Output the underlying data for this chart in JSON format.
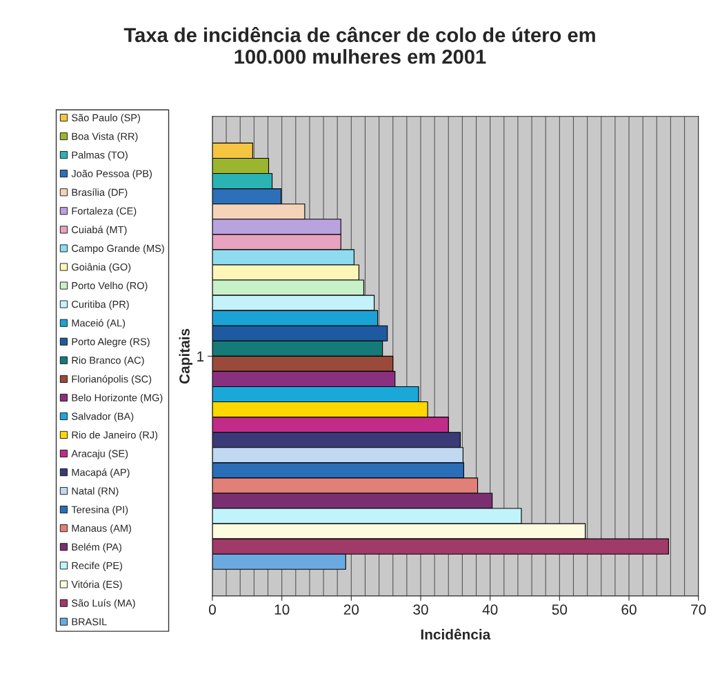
{
  "chart_data": {
    "type": "bar",
    "orientation": "horizontal",
    "title": "Taxa de incidência de câncer de colo de útero em\n100.000 mulheres em 2001",
    "xlabel": "Incidência",
    "ylabel": "Capitais",
    "categories": [
      "1"
    ],
    "xlim": [
      0,
      70
    ],
    "xticks": [
      0,
      10,
      20,
      30,
      40,
      50,
      60,
      70
    ],
    "grid": "x",
    "legend": "left",
    "series": [
      {
        "name": "São Paulo (SP)",
        "color": "#f5c542",
        "values": [
          5.8
        ]
      },
      {
        "name": "Boa Vista (RR)",
        "color": "#9cb52e",
        "values": [
          8.1
        ]
      },
      {
        "name": "Palmas (TO)",
        "color": "#2bb3b3",
        "values": [
          8.6
        ]
      },
      {
        "name": "João Pessoa (PB)",
        "color": "#2b70b8",
        "values": [
          9.9
        ]
      },
      {
        "name": "Brasília (DF)",
        "color": "#f5d3b8",
        "values": [
          13.3
        ]
      },
      {
        "name": "Fortaleza (CE)",
        "color": "#b9a3df",
        "values": [
          18.5
        ]
      },
      {
        "name": "Cuiabá (MT)",
        "color": "#e8a3c0",
        "values": [
          18.5
        ]
      },
      {
        "name": "Campo Grande (MS)",
        "color": "#8fdcf0",
        "values": [
          20.4
        ]
      },
      {
        "name": "Goiânia (GO)",
        "color": "#fdf6b8",
        "values": [
          21.1
        ]
      },
      {
        "name": "Porto Velho (RO)",
        "color": "#c8f0c8",
        "values": [
          21.8
        ]
      },
      {
        "name": "Curitiba (PR)",
        "color": "#c4f2fa",
        "values": [
          23.3
        ]
      },
      {
        "name": "Maceió (AL)",
        "color": "#1ba3d6",
        "values": [
          23.8
        ]
      },
      {
        "name": "Porto Alegre (RS)",
        "color": "#1f5aa0",
        "values": [
          25.2
        ]
      },
      {
        "name": "Rio Branco (AC)",
        "color": "#167a78",
        "values": [
          24.5
        ]
      },
      {
        "name": "Florianópolis (SC)",
        "color": "#9a4a3a",
        "values": [
          26.0
        ]
      },
      {
        "name": "Belo Horizonte (MG)",
        "color": "#8a3080",
        "values": [
          26.3
        ]
      },
      {
        "name": "Salvador (BA)",
        "color": "#1aa8d8",
        "values": [
          29.7
        ]
      },
      {
        "name": "Rio de Janeiro (RJ)",
        "color": "#fdd800",
        "values": [
          31.0
        ]
      },
      {
        "name": "Aracaju (SE)",
        "color": "#c02c88",
        "values": [
          34.0
        ]
      },
      {
        "name": "Macapá (AP)",
        "color": "#3a3a78",
        "values": [
          35.7
        ]
      },
      {
        "name": "Natal (RN)",
        "color": "#c0d8f0",
        "values": [
          36.1
        ]
      },
      {
        "name": "Teresina (PI)",
        "color": "#2a6eb8",
        "values": [
          36.2
        ]
      },
      {
        "name": "Manaus (AM)",
        "color": "#e08078",
        "values": [
          38.2
        ]
      },
      {
        "name": "Belém (PA)",
        "color": "#7a3070",
        "values": [
          40.3
        ]
      },
      {
        "name": "Recife (PE)",
        "color": "#c0f4fa",
        "values": [
          44.5
        ]
      },
      {
        "name": "Vitória (ES)",
        "color": "#fdfbe0",
        "values": [
          53.7
        ]
      },
      {
        "name": "São Luís (MA)",
        "color": "#a03a68",
        "values": [
          65.7
        ]
      },
      {
        "name": "BRASIL",
        "color": "#6aaae0",
        "values": [
          19.2
        ]
      }
    ]
  }
}
